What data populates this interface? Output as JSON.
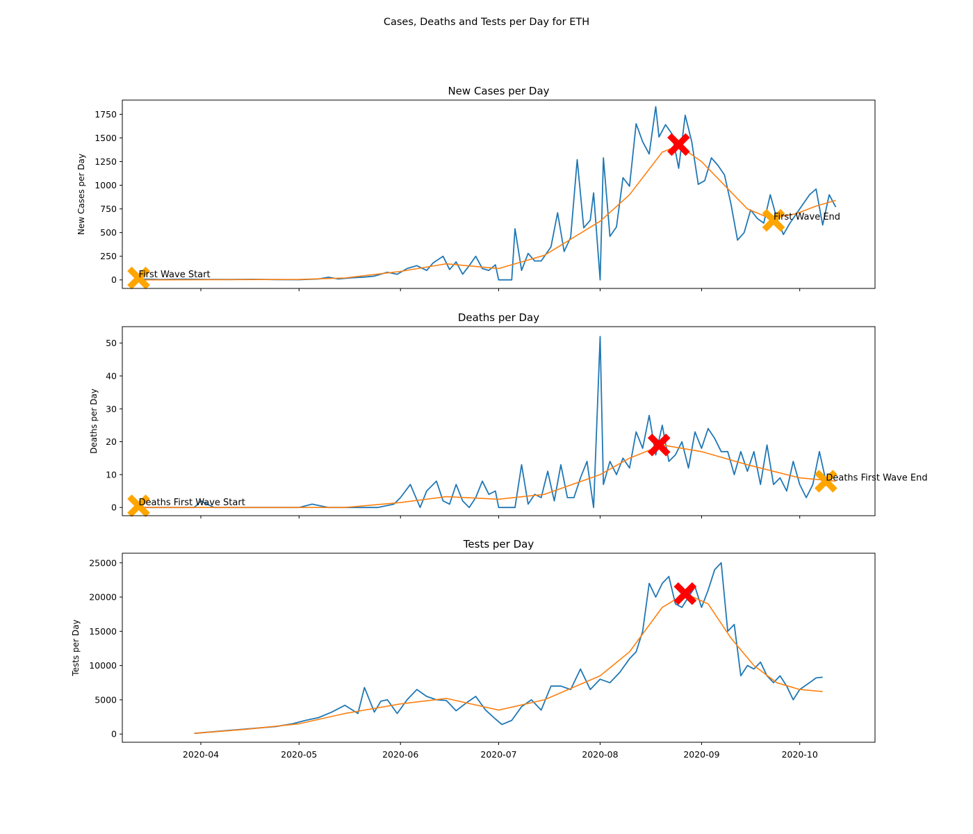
{
  "figure": {
    "suptitle": "Cases, Deaths and Tests per Day for ETH"
  },
  "chart_data": [
    {
      "type": "line",
      "title": "New Cases per Day",
      "xlabel": "",
      "ylabel": "New Cases per Day",
      "ylim": [
        -90,
        1900
      ],
      "yticks": [
        0,
        250,
        500,
        750,
        1000,
        1250,
        1500,
        1750
      ],
      "series": [
        {
          "color": "#1f77b4",
          "x": [
            "2020-03-13",
            "2020-03-20",
            "2020-03-27",
            "2020-04-03",
            "2020-04-10",
            "2020-04-17",
            "2020-04-24",
            "2020-05-01",
            "2020-05-07",
            "2020-05-10",
            "2020-05-13",
            "2020-05-17",
            "2020-05-21",
            "2020-05-24",
            "2020-05-28",
            "2020-05-31",
            "2020-06-03",
            "2020-06-06",
            "2020-06-09",
            "2020-06-11",
            "2020-06-14",
            "2020-06-16",
            "2020-06-18",
            "2020-06-20",
            "2020-06-22",
            "2020-06-24",
            "2020-06-26",
            "2020-06-28",
            "2020-06-30",
            "2020-07-01",
            "2020-07-03",
            "2020-07-05",
            "2020-07-06",
            "2020-07-08",
            "2020-07-10",
            "2020-07-12",
            "2020-07-14",
            "2020-07-17",
            "2020-07-19",
            "2020-07-21",
            "2020-07-23",
            "2020-07-25",
            "2020-07-27",
            "2020-07-29",
            "2020-07-30",
            "2020-08-01",
            "2020-08-02",
            "2020-08-04",
            "2020-08-06",
            "2020-08-08",
            "2020-08-10",
            "2020-08-12",
            "2020-08-14",
            "2020-08-16",
            "2020-08-18",
            "2020-08-19",
            "2020-08-21",
            "2020-08-23",
            "2020-08-25",
            "2020-08-27",
            "2020-08-29",
            "2020-08-31",
            "2020-09-02",
            "2020-09-04",
            "2020-09-06",
            "2020-09-08",
            "2020-09-10",
            "2020-09-12",
            "2020-09-14",
            "2020-09-16",
            "2020-09-18",
            "2020-09-20",
            "2020-09-22",
            "2020-09-24",
            "2020-09-26",
            "2020-09-28",
            "2020-09-30",
            "2020-10-02",
            "2020-10-04",
            "2020-10-06",
            "2020-10-08",
            "2020-10-10",
            "2020-10-12"
          ],
          "y": [
            10,
            5,
            8,
            5,
            4,
            6,
            3,
            2,
            10,
            28,
            10,
            22,
            30,
            40,
            80,
            60,
            120,
            150,
            100,
            180,
            250,
            110,
            190,
            60,
            150,
            250,
            120,
            100,
            160,
            0,
            0,
            0,
            540,
            100,
            280,
            200,
            200,
            350,
            710,
            300,
            450,
            1270,
            550,
            630,
            920,
            0,
            1290,
            460,
            560,
            1080,
            990,
            1650,
            1460,
            1330,
            1830,
            1510,
            1640,
            1540,
            1180,
            1740,
            1460,
            1010,
            1050,
            1290,
            1210,
            1110,
            800,
            420,
            500,
            740,
            650,
            600,
            900,
            650,
            480,
            600,
            700,
            800,
            900,
            960,
            580,
            900,
            770
          ]
        },
        {
          "color": "#ff7f0e",
          "x": [
            "2020-03-13",
            "2020-04-01",
            "2020-05-01",
            "2020-05-15",
            "2020-06-01",
            "2020-06-15",
            "2020-07-01",
            "2020-07-15",
            "2020-08-01",
            "2020-08-10",
            "2020-08-20",
            "2020-08-25",
            "2020-09-01",
            "2020-09-08",
            "2020-09-15",
            "2020-09-22",
            "2020-09-30",
            "2020-10-06",
            "2020-10-12"
          ],
          "y": [
            0,
            2,
            5,
            20,
            90,
            170,
            120,
            260,
            620,
            900,
            1350,
            1420,
            1250,
            1000,
            750,
            650,
            700,
            780,
            840
          ]
        }
      ],
      "markers": [
        {
          "x": "2020-03-13",
          "y": 20,
          "color": "#ffa500"
        },
        {
          "x": "2020-09-23",
          "y": 630,
          "color": "#ffa500"
        },
        {
          "x": "2020-08-25",
          "y": 1430,
          "color": "#ff0000"
        }
      ],
      "annotations": [
        {
          "text": "First Wave Start",
          "x": "2020-03-13",
          "y": 20
        },
        {
          "text": "First Wave End",
          "x": "2020-09-23",
          "y": 630
        }
      ]
    },
    {
      "type": "line",
      "title": "Deaths per Day",
      "xlabel": "",
      "ylabel": "Deaths per Day",
      "ylim": [
        -2.5,
        55
      ],
      "yticks": [
        0,
        10,
        20,
        30,
        40,
        50
      ],
      "series": [
        {
          "color": "#1f77b4",
          "x": [
            "2020-03-13",
            "2020-03-30",
            "2020-04-01",
            "2020-04-05",
            "2020-04-20",
            "2020-05-01",
            "2020-05-05",
            "2020-05-10",
            "2020-05-15",
            "2020-05-25",
            "2020-05-30",
            "2020-06-01",
            "2020-06-04",
            "2020-06-07",
            "2020-06-09",
            "2020-06-12",
            "2020-06-14",
            "2020-06-16",
            "2020-06-18",
            "2020-06-20",
            "2020-06-22",
            "2020-06-24",
            "2020-06-26",
            "2020-06-28",
            "2020-06-30",
            "2020-07-01",
            "2020-07-04",
            "2020-07-06",
            "2020-07-08",
            "2020-07-10",
            "2020-07-12",
            "2020-07-14",
            "2020-07-16",
            "2020-07-18",
            "2020-07-20",
            "2020-07-22",
            "2020-07-24",
            "2020-07-26",
            "2020-07-28",
            "2020-07-30",
            "2020-08-01",
            "2020-08-02",
            "2020-08-04",
            "2020-08-06",
            "2020-08-08",
            "2020-08-10",
            "2020-08-12",
            "2020-08-14",
            "2020-08-16",
            "2020-08-18",
            "2020-08-20",
            "2020-08-22",
            "2020-08-24",
            "2020-08-26",
            "2020-08-28",
            "2020-08-30",
            "2020-09-01",
            "2020-09-03",
            "2020-09-05",
            "2020-09-07",
            "2020-09-09",
            "2020-09-11",
            "2020-09-13",
            "2020-09-15",
            "2020-09-17",
            "2020-09-19",
            "2020-09-21",
            "2020-09-23",
            "2020-09-25",
            "2020-09-27",
            "2020-09-29",
            "2020-10-01",
            "2020-10-03",
            "2020-10-05",
            "2020-10-07",
            "2020-10-09",
            "2020-10-11"
          ],
          "y": [
            0,
            0,
            2,
            0,
            0,
            0,
            1,
            0,
            0,
            0,
            1,
            3,
            7,
            0,
            5,
            8,
            2,
            1,
            7,
            2,
            0,
            3,
            8,
            4,
            5,
            0,
            0,
            0,
            13,
            1,
            4,
            3,
            11,
            2,
            13,
            3,
            3,
            9,
            14,
            0,
            52,
            7,
            14,
            10,
            15,
            12,
            23,
            18,
            28,
            16,
            25,
            14,
            16,
            20,
            12,
            23,
            18,
            24,
            21,
            17,
            17,
            10,
            17,
            11,
            17,
            7,
            19,
            7,
            9,
            5,
            14,
            7,
            3,
            7,
            17,
            8,
            7
          ]
        },
        {
          "color": "#ff7f0e",
          "x": [
            "2020-03-13",
            "2020-04-15",
            "2020-05-15",
            "2020-06-01",
            "2020-06-15",
            "2020-07-01",
            "2020-07-15",
            "2020-08-01",
            "2020-08-10",
            "2020-08-20",
            "2020-09-01",
            "2020-09-15",
            "2020-10-01",
            "2020-10-12"
          ],
          "y": [
            0,
            0,
            0,
            1.5,
            3.3,
            2.5,
            4,
            10,
            15,
            19,
            17,
            13,
            9,
            8
          ]
        }
      ],
      "markers": [
        {
          "x": "2020-03-13",
          "y": 0.5,
          "color": "#ffa500"
        },
        {
          "x": "2020-10-09",
          "y": 8,
          "color": "#ffa500"
        },
        {
          "x": "2020-08-19",
          "y": 19,
          "color": "#ff0000"
        }
      ],
      "annotations": [
        {
          "text": "Deaths First Wave Start",
          "x": "2020-03-13",
          "y": 0.5
        },
        {
          "text": "Deaths First Wave End",
          "x": "2020-10-09",
          "y": 8
        }
      ]
    },
    {
      "type": "line",
      "title": "Tests per Day",
      "xlabel": "",
      "ylabel": "Tests per Day",
      "ylim": [
        -1200,
        26400
      ],
      "yticks": [
        0,
        5000,
        10000,
        15000,
        20000,
        25000
      ],
      "xticks": [
        "2020-04",
        "2020-05",
        "2020-06",
        "2020-07",
        "2020-08",
        "2020-09",
        "2020-10"
      ],
      "series": [
        {
          "color": "#1f77b4",
          "x": [
            "2020-03-30",
            "2020-04-04",
            "2020-04-09",
            "2020-04-14",
            "2020-04-19",
            "2020-04-24",
            "2020-04-29",
            "2020-05-03",
            "2020-05-07",
            "2020-05-11",
            "2020-05-15",
            "2020-05-19",
            "2020-05-21",
            "2020-05-24",
            "2020-05-26",
            "2020-05-28",
            "2020-05-31",
            "2020-06-03",
            "2020-06-06",
            "2020-06-09",
            "2020-06-12",
            "2020-06-15",
            "2020-06-18",
            "2020-06-21",
            "2020-06-24",
            "2020-06-27",
            "2020-06-30",
            "2020-07-02",
            "2020-07-05",
            "2020-07-08",
            "2020-07-11",
            "2020-07-14",
            "2020-07-17",
            "2020-07-20",
            "2020-07-23",
            "2020-07-26",
            "2020-07-29",
            "2020-08-01",
            "2020-08-04",
            "2020-08-07",
            "2020-08-10",
            "2020-08-12",
            "2020-08-14",
            "2020-08-16",
            "2020-08-18",
            "2020-08-20",
            "2020-08-22",
            "2020-08-24",
            "2020-08-26",
            "2020-08-28",
            "2020-08-30",
            "2020-09-01",
            "2020-09-03",
            "2020-09-05",
            "2020-09-07",
            "2020-09-09",
            "2020-09-11",
            "2020-09-13",
            "2020-09-15",
            "2020-09-17",
            "2020-09-19",
            "2020-09-21",
            "2020-09-23",
            "2020-09-25",
            "2020-09-27",
            "2020-09-29",
            "2020-10-01",
            "2020-10-04",
            "2020-10-06",
            "2020-10-08"
          ],
          "y": [
            100,
            300,
            500,
            700,
            900,
            1100,
            1500,
            2000,
            2400,
            3200,
            4200,
            3000,
            6800,
            3200,
            4800,
            5000,
            3000,
            5000,
            6500,
            5500,
            5000,
            4900,
            3400,
            4500,
            5500,
            3500,
            2200,
            1400,
            2000,
            4000,
            5000,
            3500,
            7000,
            7000,
            6500,
            9500,
            6500,
            8000,
            7500,
            9000,
            11000,
            12000,
            15000,
            22000,
            20000,
            22000,
            23000,
            19000,
            18500,
            20000,
            21500,
            18500,
            21000,
            24000,
            25000,
            15000,
            16000,
            8500,
            10000,
            9500,
            10500,
            8500,
            7500,
            8500,
            7000,
            5000,
            6500,
            7500,
            8200,
            8300
          ]
        },
        {
          "color": "#ff7f0e",
          "x": [
            "2020-03-30",
            "2020-04-15",
            "2020-05-01",
            "2020-05-15",
            "2020-06-01",
            "2020-06-15",
            "2020-07-01",
            "2020-07-15",
            "2020-08-01",
            "2020-08-10",
            "2020-08-20",
            "2020-08-27",
            "2020-09-03",
            "2020-09-10",
            "2020-09-17",
            "2020-09-24",
            "2020-10-01",
            "2020-10-08"
          ],
          "y": [
            100,
            700,
            1500,
            3000,
            4400,
            5200,
            3500,
            5000,
            8500,
            12000,
            18500,
            20500,
            19000,
            14000,
            10000,
            7500,
            6500,
            6200
          ]
        }
      ],
      "markers": [
        {
          "x": "2020-08-27",
          "y": 20500,
          "color": "#ff0000"
        }
      ],
      "annotations": []
    }
  ]
}
